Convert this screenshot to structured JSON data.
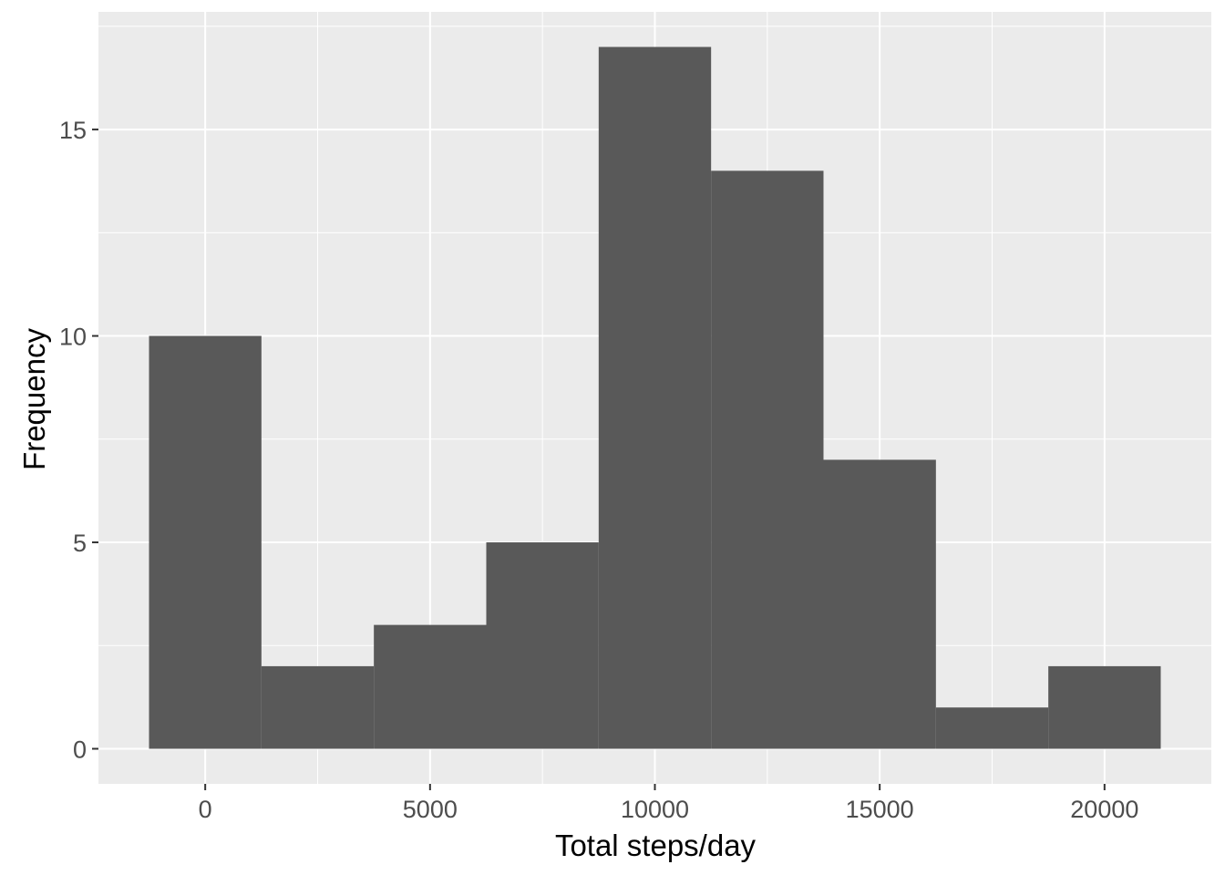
{
  "chart_data": {
    "type": "bar",
    "subtype": "histogram",
    "xlabel": "Total steps/day",
    "ylabel": "Frequency",
    "bin_width": 2500,
    "bins": [
      {
        "x0": -1250,
        "x1": 1250,
        "count": 10
      },
      {
        "x0": 1250,
        "x1": 3750,
        "count": 2
      },
      {
        "x0": 3750,
        "x1": 6250,
        "count": 3
      },
      {
        "x0": 6250,
        "x1": 8750,
        "count": 5
      },
      {
        "x0": 8750,
        "x1": 11250,
        "count": 17
      },
      {
        "x0": 11250,
        "x1": 13750,
        "count": 14
      },
      {
        "x0": 13750,
        "x1": 16250,
        "count": 7
      },
      {
        "x0": 16250,
        "x1": 18750,
        "count": 1
      },
      {
        "x0": 18750,
        "x1": 21250,
        "count": 2
      }
    ],
    "xlim": [
      -2375,
      22375
    ],
    "ylim": [
      -0.85,
      17.85
    ],
    "x_ticks": [
      {
        "value": 0,
        "label": "0"
      },
      {
        "value": 5000,
        "label": "5000"
      },
      {
        "value": 10000,
        "label": "10000"
      },
      {
        "value": 15000,
        "label": "15000"
      },
      {
        "value": 20000,
        "label": "20000"
      }
    ],
    "y_ticks": [
      {
        "value": 0,
        "label": "0"
      },
      {
        "value": 5,
        "label": "5"
      },
      {
        "value": 10,
        "label": "10"
      },
      {
        "value": 15,
        "label": "15"
      }
    ],
    "grid": true,
    "colors": {
      "bar_fill": "#595959",
      "panel_background": "#ebebeb",
      "grid_line": "#ffffff",
      "tick_text": "#4d4d4d",
      "tick_mark": "#333333",
      "axis_title": "#000000"
    }
  }
}
